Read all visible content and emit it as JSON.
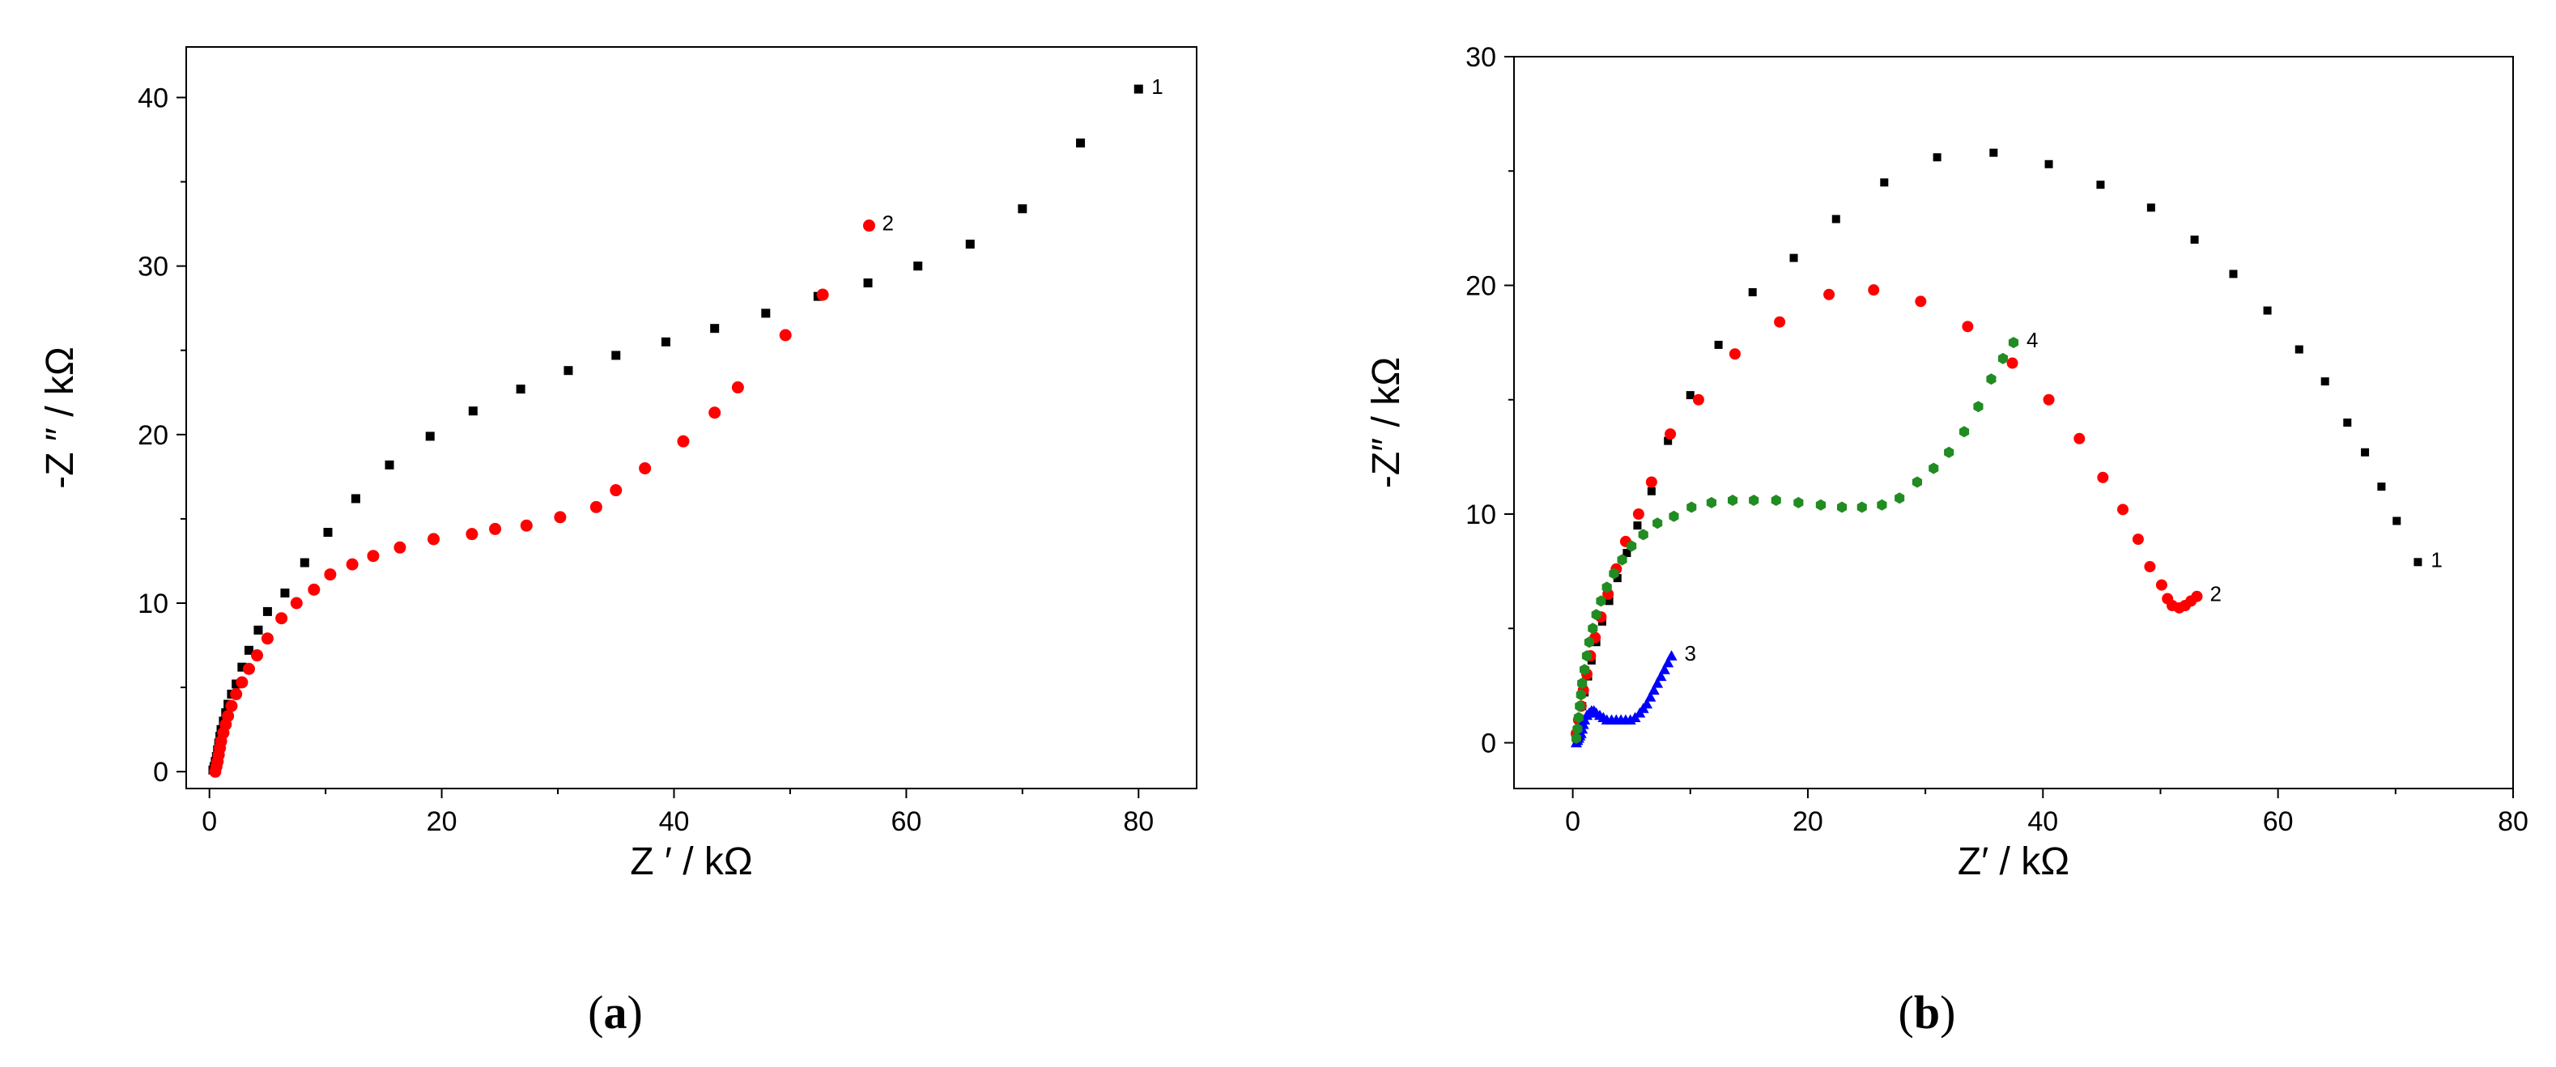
{
  "chart_data": [
    {
      "type": "scatter",
      "panel_label": "(a)",
      "panel_letter": "a",
      "xlabel": "Z ′ / kΩ",
      "ylabel": "-Z ″ / kΩ",
      "xlim": [
        -2,
        85
      ],
      "ylim": [
        -1,
        43
      ],
      "xticks": [
        0,
        20,
        40,
        60,
        80
      ],
      "yticks": [
        0,
        10,
        20,
        30,
        40
      ],
      "xtick_labels": [
        "0",
        "20",
        "40",
        "60",
        "80"
      ],
      "ytick_labels": [
        "0",
        "10",
        "20",
        "30",
        "40"
      ],
      "series": [
        {
          "name": "1",
          "label": "1",
          "marker": "square",
          "color": "#000000",
          "x": [
            0.3,
            0.4,
            0.5,
            0.6,
            0.7,
            0.8,
            0.9,
            1.0,
            1.2,
            1.4,
            1.6,
            1.9,
            2.3,
            2.8,
            3.4,
            4.2,
            5.0,
            6.5,
            8.2,
            10.2,
            12.6,
            15.5,
            19.0,
            22.7,
            26.8,
            30.9,
            35.0,
            39.3,
            43.5,
            47.9,
            52.4,
            56.7,
            61.0,
            65.5,
            70.0,
            75.0,
            80.0
          ],
          "y": [
            0.1,
            0.3,
            0.6,
            0.9,
            1.3,
            1.7,
            2.1,
            2.5,
            3.0,
            3.5,
            4.0,
            4.6,
            5.2,
            6.2,
            7.2,
            8.4,
            9.5,
            10.6,
            12.4,
            14.2,
            16.2,
            18.2,
            19.9,
            21.4,
            22.7,
            23.8,
            24.7,
            25.5,
            26.3,
            27.2,
            28.2,
            29.0,
            30.0,
            31.3,
            33.4,
            37.3,
            40.5
          ],
          "label_x": 80.0,
          "label_y": 40.5
        },
        {
          "name": "2",
          "label": "2",
          "marker": "circle",
          "color": "#ff0000",
          "x": [
            0.5,
            0.6,
            0.7,
            0.8,
            0.9,
            1.0,
            1.2,
            1.4,
            1.6,
            1.9,
            2.3,
            2.8,
            3.4,
            4.1,
            5.0,
            6.2,
            7.5,
            9.0,
            10.4,
            12.3,
            14.1,
            16.4,
            19.3,
            22.6,
            24.6,
            27.3,
            30.2,
            33.3,
            35.0,
            37.5,
            40.8,
            43.5,
            45.5,
            49.6,
            52.8,
            56.8
          ],
          "y": [
            0.0,
            0.3,
            0.6,
            1.0,
            1.4,
            1.8,
            2.3,
            2.8,
            3.3,
            3.9,
            4.6,
            5.3,
            6.1,
            6.9,
            7.9,
            9.1,
            10.0,
            10.8,
            11.7,
            12.3,
            12.8,
            13.3,
            13.8,
            14.1,
            14.4,
            14.6,
            15.1,
            15.7,
            16.7,
            18.0,
            19.6,
            21.3,
            22.8,
            25.9,
            28.3,
            32.4
          ],
          "label_x": 56.8,
          "label_y": 32.4
        }
      ]
    },
    {
      "type": "scatter",
      "panel_label": "(b)",
      "panel_letter": "b",
      "xlabel": "Z′ / kΩ",
      "ylabel": "-Z″ / kΩ",
      "xlim": [
        -5,
        80
      ],
      "ylim": [
        -2,
        30
      ],
      "xticks": [
        0,
        20,
        40,
        60,
        80
      ],
      "yticks": [
        0,
        10,
        20,
        30
      ],
      "xtick_labels": [
        "0",
        "20",
        "40",
        "60",
        "80"
      ],
      "ytick_labels": [
        "0",
        "10",
        "20",
        "30"
      ],
      "series": [
        {
          "name": "1",
          "label": "1",
          "marker": "square",
          "color": "#000000",
          "x": [
            0.3,
            0.4,
            0.6,
            0.8,
            1.0,
            1.3,
            1.6,
            2.0,
            2.5,
            3.1,
            3.8,
            4.6,
            5.5,
            6.7,
            8.1,
            10.0,
            12.4,
            15.3,
            18.8,
            22.4,
            26.5,
            31.0,
            35.8,
            40.5,
            44.9,
            49.2,
            52.9,
            56.2,
            59.1,
            61.8,
            64.0,
            65.9,
            67.4,
            68.8,
            70.1,
            71.9
          ],
          "y": [
            0.2,
            0.5,
            1.0,
            1.6,
            2.2,
            2.9,
            3.6,
            4.4,
            5.3,
            6.2,
            7.2,
            8.3,
            9.5,
            11.0,
            13.2,
            15.2,
            17.4,
            19.7,
            21.2,
            22.9,
            24.5,
            25.6,
            25.8,
            25.3,
            24.4,
            23.4,
            22.0,
            20.5,
            18.9,
            17.2,
            15.8,
            14.0,
            12.7,
            11.2,
            9.7,
            7.9
          ],
          "label_x": 71.9,
          "label_y": 7.9
        },
        {
          "name": "2",
          "label": "2",
          "marker": "circle",
          "color": "#ff0000",
          "x": [
            0.3,
            0.5,
            0.7,
            0.9,
            1.2,
            1.5,
            1.9,
            2.4,
            3.0,
            3.7,
            4.5,
            5.6,
            6.7,
            8.3,
            10.7,
            13.8,
            17.6,
            21.8,
            25.6,
            29.6,
            33.6,
            37.4,
            40.5,
            43.1,
            45.1,
            46.8,
            48.1,
            49.1,
            50.1,
            50.6,
            51.0,
            51.6,
            52.1,
            52.6,
            53.1
          ],
          "y": [
            0.4,
            1.0,
            1.6,
            2.3,
            3.0,
            3.8,
            4.6,
            5.5,
            6.5,
            7.6,
            8.8,
            10.0,
            11.4,
            13.5,
            15.0,
            17.0,
            18.4,
            19.6,
            19.8,
            19.3,
            18.2,
            16.6,
            15.0,
            13.3,
            11.6,
            10.2,
            8.9,
            7.7,
            6.9,
            6.3,
            6.0,
            5.9,
            6.0,
            6.2,
            6.4
          ],
          "label_x": 53.1,
          "label_y": 6.4
        },
        {
          "name": "3",
          "label": "3",
          "marker": "triangle",
          "color": "#0000ff",
          "x": [
            0.3,
            0.4,
            0.5,
            0.6,
            0.7,
            0.8,
            0.9,
            1.0,
            1.2,
            1.4,
            1.6,
            1.8,
            2.0,
            2.3,
            2.6,
            2.9,
            3.3,
            3.7,
            4.1,
            4.5,
            4.9,
            5.3,
            5.7,
            6.0,
            6.3,
            6.6,
            6.9,
            7.2,
            7.5,
            7.8,
            8.1,
            8.4
          ],
          "y": [
            0.0,
            0.1,
            0.2,
            0.3,
            0.4,
            0.6,
            0.8,
            1.0,
            1.2,
            1.3,
            1.4,
            1.4,
            1.3,
            1.2,
            1.1,
            1.0,
            1.0,
            1.0,
            1.0,
            1.0,
            1.0,
            1.1,
            1.3,
            1.5,
            1.7,
            2.0,
            2.3,
            2.6,
            2.9,
            3.2,
            3.5,
            3.8
          ],
          "label_x": 8.4,
          "label_y": 3.8
        },
        {
          "name": "4",
          "label": "4",
          "marker": "hexagon",
          "color": "#218c21",
          "x": [
            0.3,
            0.4,
            0.5,
            0.6,
            0.7,
            0.8,
            1.0,
            1.2,
            1.4,
            1.7,
            2.0,
            2.4,
            2.9,
            3.5,
            4.2,
            5.0,
            6.0,
            7.2,
            8.6,
            10.1,
            11.8,
            13.6,
            15.4,
            17.3,
            19.2,
            21.1,
            22.9,
            24.6,
            26.3,
            27.8,
            29.3,
            30.7,
            32.0,
            33.3,
            34.5,
            35.6,
            36.6,
            37.5
          ],
          "y": [
            0.2,
            0.6,
            1.1,
            1.6,
            2.1,
            2.6,
            3.2,
            3.8,
            4.4,
            5.0,
            5.6,
            6.2,
            6.8,
            7.4,
            8.0,
            8.6,
            9.1,
            9.6,
            9.9,
            10.3,
            10.5,
            10.6,
            10.6,
            10.6,
            10.5,
            10.4,
            10.3,
            10.3,
            10.4,
            10.7,
            11.4,
            12.0,
            12.7,
            13.6,
            14.7,
            15.9,
            16.8,
            17.5
          ],
          "label_x": 37.5,
          "label_y": 17.5
        }
      ]
    }
  ]
}
